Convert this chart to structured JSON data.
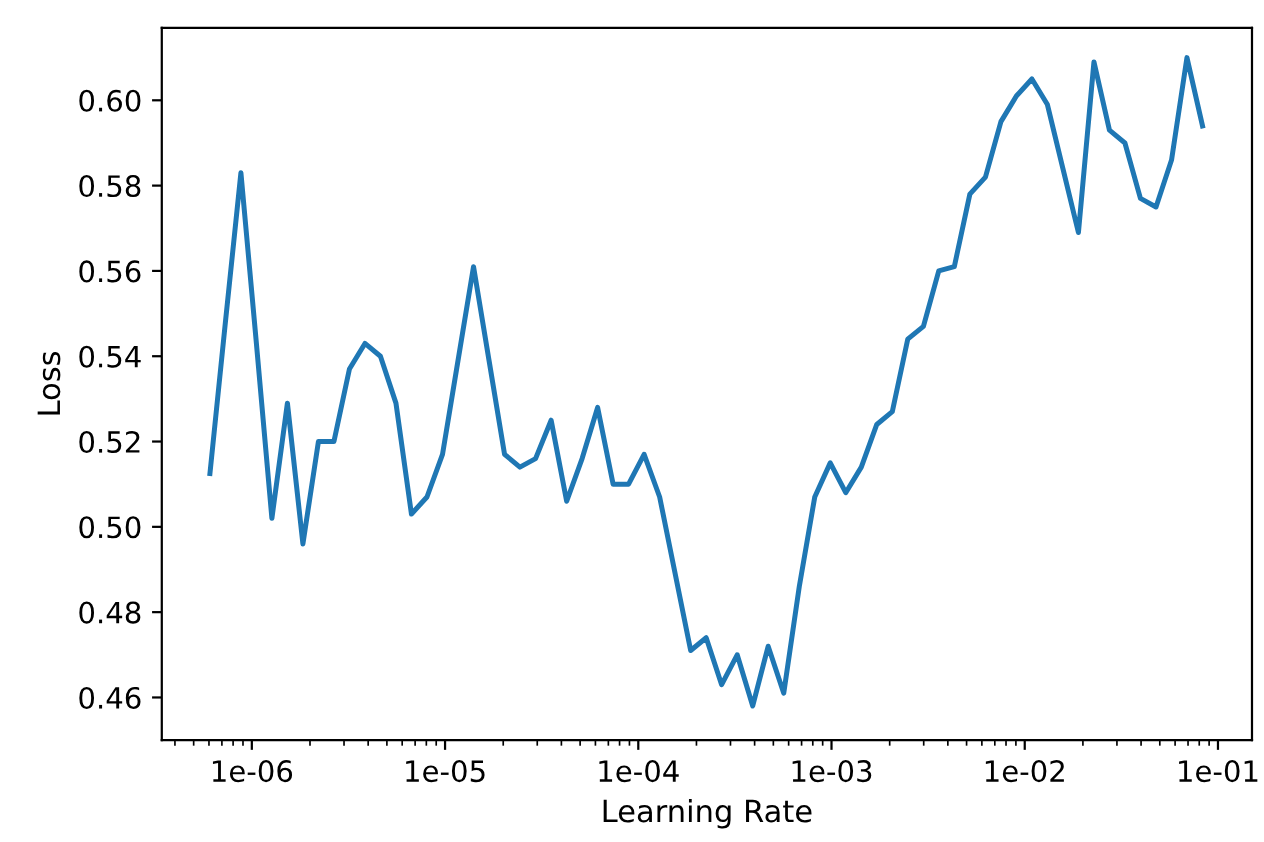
{
  "chart_data": {
    "type": "line",
    "xlabel": "Learning Rate",
    "ylabel": "Loss",
    "log": "x",
    "grid": false,
    "legend": false,
    "marker": "none",
    "line_style": "solid",
    "x": [
      6.07e-07,
      7.3e-07,
      8.78e-07,
      1.056e-06,
      1.27e-06,
      1.528e-06,
      1.838e-06,
      2.211e-06,
      2.66e-06,
      3.2e-06,
      3.85e-06,
      4.63e-06,
      5.57e-06,
      6.7e-06,
      8.06e-06,
      9.7e-06,
      1.167e-05,
      1.404e-05,
      1.689e-05,
      2.032e-05,
      2.44e-05,
      2.94e-05,
      3.54e-05,
      4.26e-05,
      5.12e-05,
      6.16e-05,
      7.41e-05,
      8.91e-05,
      0.0001072,
      0.000129,
      0.0001552,
      0.0001867,
      0.0002246,
      0.00027,
      0.000325,
      0.000391,
      0.00047,
      0.000566,
      0.000681,
      0.000819,
      0.000985,
      0.001185,
      0.001426,
      0.001715,
      0.002063,
      0.00248,
      0.00299,
      0.00359,
      0.00432,
      0.0052,
      0.00626,
      0.00753,
      0.00905,
      0.01089,
      0.0131,
      0.01576,
      0.01896,
      0.02281,
      0.02744,
      0.033,
      0.0397,
      0.0478,
      0.0575,
      0.0691,
      0.0832
    ],
    "series": [
      {
        "color": "#1f77b4",
        "values": [
          0.5125,
          0.548,
          0.583,
          0.543,
          0.502,
          0.529,
          0.496,
          0.52,
          0.52,
          0.537,
          0.543,
          0.54,
          0.529,
          0.503,
          0.507,
          0.517,
          0.539,
          0.561,
          0.539,
          0.517,
          0.514,
          0.516,
          0.525,
          0.506,
          0.516,
          0.528,
          0.51,
          0.51,
          0.517,
          0.507,
          0.489,
          0.471,
          0.474,
          0.463,
          0.47,
          0.458,
          0.472,
          0.461,
          0.486,
          0.507,
          0.515,
          0.508,
          0.514,
          0.524,
          0.527,
          0.544,
          0.547,
          0.56,
          0.561,
          0.578,
          0.582,
          0.595,
          0.601,
          0.605,
          0.599,
          0.584,
          0.569,
          0.609,
          0.593,
          0.59,
          0.577,
          0.575,
          0.586,
          0.61,
          0.594
        ]
      }
    ],
    "xlim": [
      3.42e-07,
      0.15
    ],
    "ylim": [
      0.45,
      0.617
    ],
    "xticks": [
      {
        "value": 1e-06,
        "label": "1e-06"
      },
      {
        "value": 1e-05,
        "label": "1e-05"
      },
      {
        "value": 0.0001,
        "label": "1e-04"
      },
      {
        "value": 0.001,
        "label": "1e-03"
      },
      {
        "value": 0.01,
        "label": "1e-02"
      },
      {
        "value": 0.1,
        "label": "1e-01"
      }
    ],
    "yticks": [
      0.46,
      0.48,
      {
        "value": 0.5,
        "label": "0.50"
      },
      0.52,
      0.54,
      0.56,
      0.58,
      {
        "value": 0.6,
        "label": "0.60"
      }
    ]
  }
}
